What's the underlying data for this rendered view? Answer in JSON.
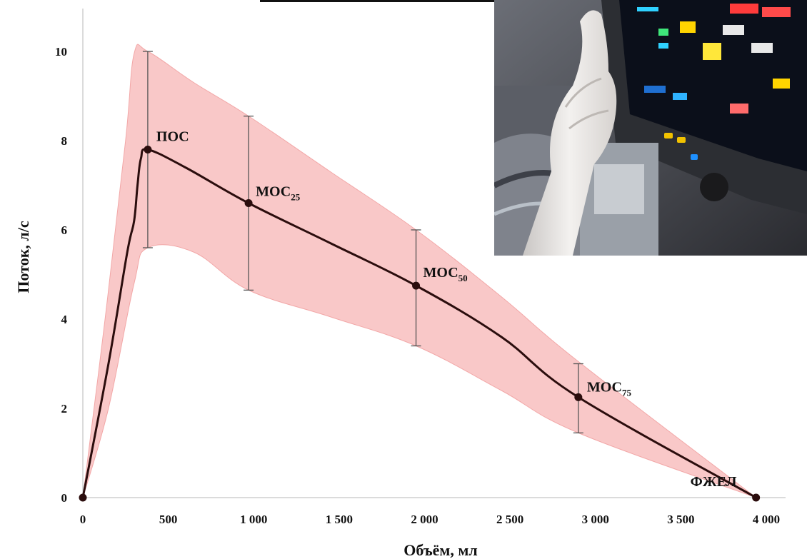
{
  "chart_data": {
    "type": "line",
    "xlabel": "Объём, мл",
    "ylabel": "Поток, л/с",
    "xlim": [
      0,
      4000
    ],
    "ylim": [
      0,
      10
    ],
    "x_ticks": [
      {
        "value": 0,
        "label": "0"
      },
      {
        "value": 500,
        "label": "500"
      },
      {
        "value": 1000,
        "label": "1 000"
      },
      {
        "value": 1500,
        "label": "1 500"
      },
      {
        "value": 2000,
        "label": "2 000"
      },
      {
        "value": 2500,
        "label": "2 500"
      },
      {
        "value": 3000,
        "label": "3 000"
      },
      {
        "value": 3500,
        "label": "3 500"
      },
      {
        "value": 4000,
        "label": "4 000"
      }
    ],
    "y_ticks": [
      {
        "value": 0,
        "label": "0"
      },
      {
        "value": 2,
        "label": "2"
      },
      {
        "value": 4,
        "label": "4"
      },
      {
        "value": 6,
        "label": "6"
      },
      {
        "value": 8,
        "label": "8"
      },
      {
        "value": 10,
        "label": "10"
      }
    ],
    "points": [
      {
        "x": 0,
        "y": 0,
        "label": "",
        "sub": "",
        "err_low": null,
        "err_high": null
      },
      {
        "x": 380,
        "y": 7.8,
        "label": "ПОС",
        "sub": "",
        "err_low": 5.6,
        "err_high": 10.0
      },
      {
        "x": 970,
        "y": 6.6,
        "label": "МОС",
        "sub": "25",
        "err_low": 4.65,
        "err_high": 8.55
      },
      {
        "x": 1950,
        "y": 4.75,
        "label": "МОС",
        "sub": "50",
        "err_low": 3.4,
        "err_high": 6.0
      },
      {
        "x": 2900,
        "y": 2.25,
        "label": "МОС",
        "sub": "75",
        "err_low": 1.45,
        "err_high": 3.0
      },
      {
        "x": 3940,
        "y": 0,
        "label": "ФЖЕЛ",
        "sub": "",
        "err_low": null,
        "err_high": null
      }
    ],
    "curve": [
      [
        0,
        0
      ],
      [
        150,
        3.0
      ],
      [
        260,
        5.5
      ],
      [
        300,
        6.2
      ],
      [
        320,
        7.0
      ],
      [
        340,
        7.6
      ],
      [
        380,
        7.8
      ],
      [
        600,
        7.4
      ],
      [
        970,
        6.6
      ],
      [
        1450,
        5.7
      ],
      [
        1950,
        4.75
      ],
      [
        2450,
        3.6
      ],
      [
        2900,
        2.25
      ],
      [
        3940,
        0
      ]
    ],
    "band_upper": [
      [
        0,
        0
      ],
      [
        130,
        4.0
      ],
      [
        250,
        8.0
      ],
      [
        300,
        9.95
      ],
      [
        380,
        10.0
      ],
      [
        650,
        9.3
      ],
      [
        970,
        8.55
      ],
      [
        1450,
        7.3
      ],
      [
        1950,
        6.0
      ],
      [
        2450,
        4.5
      ],
      [
        2900,
        3.05
      ],
      [
        3940,
        0
      ]
    ],
    "band_lower": [
      [
        3940,
        0
      ],
      [
        2900,
        1.45
      ],
      [
        2450,
        2.4
      ],
      [
        1950,
        3.4
      ],
      [
        1450,
        4.05
      ],
      [
        970,
        4.65
      ],
      [
        650,
        5.5
      ],
      [
        380,
        5.6
      ],
      [
        300,
        4.8
      ],
      [
        150,
        2.0
      ],
      [
        0,
        0
      ]
    ],
    "colors": {
      "band_fill": "#f9c6c6",
      "band_stroke": "#f2a3a3",
      "line": "#2b0d0d",
      "errorbar": "#555555",
      "axis": "#cfcfcf"
    }
  },
  "photo": {
    "alt": "медицинский монитор и рука в перчатке"
  }
}
